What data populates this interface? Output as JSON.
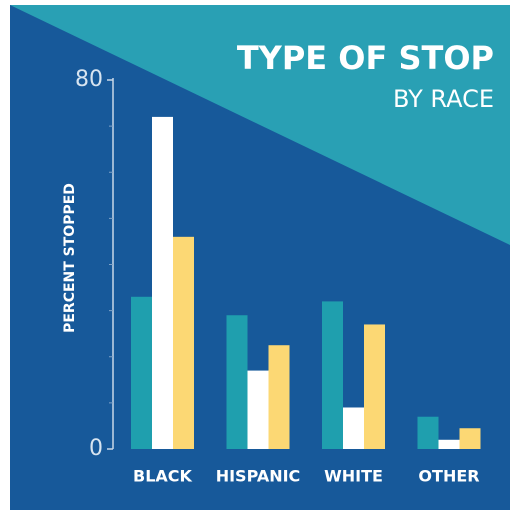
{
  "chart_data": {
    "type": "bar",
    "title": "TYPE OF STOP",
    "subtitle": "BY RACE",
    "y_label": "PERCENT STOPPED",
    "categories": [
      "BLACK",
      "HISPANIC",
      "WHITE",
      "OTHER"
    ],
    "series": [
      {
        "color": "#1f9fae",
        "values": [
          33,
          29,
          32,
          7
        ]
      },
      {
        "color": "#ffffff",
        "values": [
          72,
          17,
          9,
          2
        ]
      },
      {
        "color": "#fcd874",
        "values": [
          46,
          22.5,
          27,
          4.5
        ]
      }
    ],
    "ylim": [
      0,
      80
    ],
    "yticks": [
      0,
      80
    ],
    "minor_yticks": [
      10,
      20,
      30,
      40,
      50,
      60,
      70
    ]
  }
}
